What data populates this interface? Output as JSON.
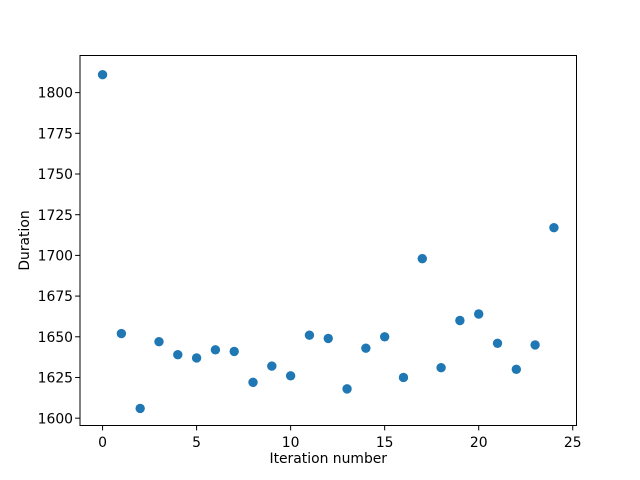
{
  "chart_data": {
    "type": "scatter",
    "xlabel": "Iteration number",
    "ylabel": "Duration",
    "x": [
      0,
      1,
      2,
      3,
      4,
      5,
      6,
      7,
      8,
      9,
      10,
      11,
      12,
      13,
      14,
      15,
      16,
      17,
      18,
      19,
      20,
      21,
      22,
      23,
      24
    ],
    "y": [
      1811,
      1652,
      1606,
      1647,
      1639,
      1637,
      1642,
      1641,
      1622,
      1632,
      1626,
      1651,
      1649,
      1618,
      1643,
      1650,
      1625,
      1698,
      1631,
      1660,
      1664,
      1646,
      1630,
      1645,
      1717
    ],
    "xticks": [
      0,
      5,
      10,
      15,
      20,
      25
    ],
    "yticks": [
      1600,
      1625,
      1650,
      1675,
      1700,
      1725,
      1750,
      1775,
      1800
    ],
    "xlim": [
      -1.2,
      25.2
    ],
    "ylim": [
      1595.5,
      1822.8
    ],
    "grid": false,
    "legend": false,
    "marker_color": "#1f77b4",
    "axis_color": "#000000",
    "background_color": "#ffffff"
  }
}
